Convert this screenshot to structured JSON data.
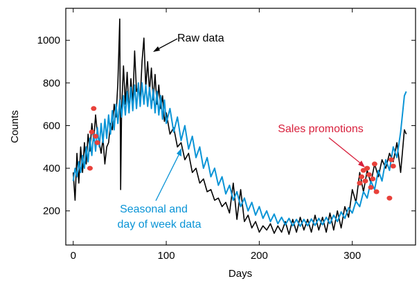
{
  "chart_data": {
    "type": "line",
    "xlabel": "Days",
    "ylabel": "Counts",
    "xlim": [
      -8,
      368
    ],
    "ylim": [
      40,
      1150
    ],
    "x_ticks": [
      0,
      100,
      200,
      300
    ],
    "y_ticks": [
      200,
      400,
      600,
      800,
      1000
    ],
    "grid": false,
    "series": [
      {
        "name": "Raw data",
        "color": "#000000",
        "x": [
          0,
          2,
          4,
          6,
          8,
          10,
          12,
          14,
          16,
          18,
          20,
          22,
          24,
          26,
          28,
          30,
          32,
          34,
          36,
          38,
          40,
          42,
          44,
          46,
          48,
          50,
          51,
          52,
          54,
          56,
          58,
          60,
          62,
          64,
          66,
          68,
          70,
          72,
          74,
          76,
          78,
          80,
          82,
          84,
          86,
          88,
          90,
          92,
          94,
          96,
          98,
          100,
          104,
          108,
          112,
          116,
          120,
          124,
          128,
          132,
          136,
          140,
          144,
          148,
          152,
          156,
          160,
          164,
          168,
          172,
          176,
          180,
          184,
          188,
          192,
          196,
          200,
          204,
          208,
          212,
          216,
          220,
          224,
          228,
          232,
          236,
          240,
          244,
          248,
          252,
          256,
          260,
          264,
          268,
          272,
          276,
          280,
          284,
          288,
          292,
          296,
          300,
          304,
          308,
          312,
          316,
          320,
          324,
          328,
          332,
          336,
          340,
          344,
          348,
          352,
          356,
          358
        ],
        "y": [
          380,
          250,
          470,
          330,
          500,
          380,
          520,
          420,
          560,
          480,
          610,
          530,
          650,
          560,
          520,
          470,
          540,
          420,
          500,
          520,
          610,
          580,
          700,
          640,
          800,
          1100,
          300,
          680,
          880,
          700,
          850,
          660,
          820,
          700,
          950,
          760,
          780,
          720,
          900,
          1010,
          780,
          900,
          760,
          870,
          720,
          840,
          700,
          790,
          680,
          740,
          620,
          660,
          560,
          590,
          500,
          520,
          440,
          470,
          380,
          400,
          330,
          350,
          290,
          300,
          250,
          260,
          220,
          240,
          190,
          330,
          160,
          300,
          150,
          180,
          120,
          150,
          100,
          130,
          110,
          140,
          95,
          130,
          100,
          150,
          90,
          160,
          100,
          170,
          110,
          160,
          100,
          180,
          110,
          170,
          100,
          190,
          110,
          200,
          120,
          220,
          170,
          300,
          240,
          380,
          290,
          390,
          330,
          420,
          360,
          440,
          400,
          470,
          430,
          520,
          380,
          580,
          560
        ]
      },
      {
        "name": "Seasonal and day of week data",
        "color": "#0a94d6",
        "x": [
          0,
          2,
          4,
          6,
          8,
          10,
          12,
          14,
          16,
          18,
          20,
          22,
          24,
          26,
          28,
          30,
          32,
          34,
          36,
          38,
          40,
          42,
          44,
          46,
          48,
          50,
          52,
          54,
          56,
          58,
          60,
          62,
          64,
          66,
          68,
          70,
          72,
          74,
          76,
          78,
          80,
          82,
          84,
          86,
          88,
          90,
          92,
          94,
          96,
          98,
          100,
          104,
          108,
          112,
          116,
          120,
          124,
          128,
          132,
          136,
          140,
          144,
          148,
          152,
          156,
          160,
          164,
          168,
          172,
          176,
          180,
          184,
          188,
          192,
          196,
          200,
          204,
          208,
          212,
          216,
          220,
          224,
          228,
          232,
          236,
          240,
          244,
          248,
          252,
          256,
          260,
          264,
          268,
          272,
          276,
          280,
          284,
          288,
          292,
          296,
          300,
          304,
          308,
          312,
          316,
          320,
          324,
          328,
          332,
          336,
          340,
          344,
          348,
          352,
          356,
          358
        ],
        "y": [
          340,
          400,
          360,
          430,
          380,
          460,
          400,
          500,
          430,
          540,
          460,
          570,
          480,
          590,
          500,
          610,
          520,
          630,
          540,
          650,
          560,
          670,
          580,
          700,
          610,
          720,
          640,
          740,
          650,
          760,
          660,
          780,
          670,
          790,
          680,
          800,
          690,
          800,
          700,
          790,
          690,
          780,
          680,
          770,
          660,
          760,
          650,
          740,
          630,
          720,
          610,
          680,
          570,
          640,
          530,
          600,
          490,
          550,
          450,
          500,
          400,
          450,
          360,
          400,
          320,
          360,
          280,
          320,
          250,
          290,
          220,
          260,
          200,
          240,
          180,
          220,
          165,
          200,
          150,
          185,
          140,
          170,
          135,
          165,
          130,
          160,
          128,
          160,
          130,
          162,
          132,
          165,
          135,
          170,
          140,
          180,
          150,
          195,
          165,
          215,
          190,
          245,
          220,
          290,
          260,
          340,
          300,
          390,
          340,
          440,
          390,
          500,
          450,
          570,
          740,
          760
        ]
      },
      {
        "name": "Sales promotions",
        "color": "#e8413a",
        "x": [
          18,
          20,
          22,
          24,
          26,
          308,
          310,
          312,
          314,
          316,
          318,
          320,
          322,
          324,
          326,
          340,
          342,
          344
        ],
        "y": [
          400,
          570,
          680,
          550,
          520,
          330,
          360,
          390,
          340,
          400,
          370,
          310,
          350,
          420,
          290,
          260,
          440,
          410
        ]
      }
    ],
    "annotations": [
      {
        "text": "Raw data",
        "color": "#000000"
      },
      {
        "text": "Seasonal and",
        "color": "#0a94d6"
      },
      {
        "text": "day of week data",
        "color": "#0a94d6"
      },
      {
        "text": "Sales promotions",
        "color": "#d8203c"
      }
    ]
  }
}
